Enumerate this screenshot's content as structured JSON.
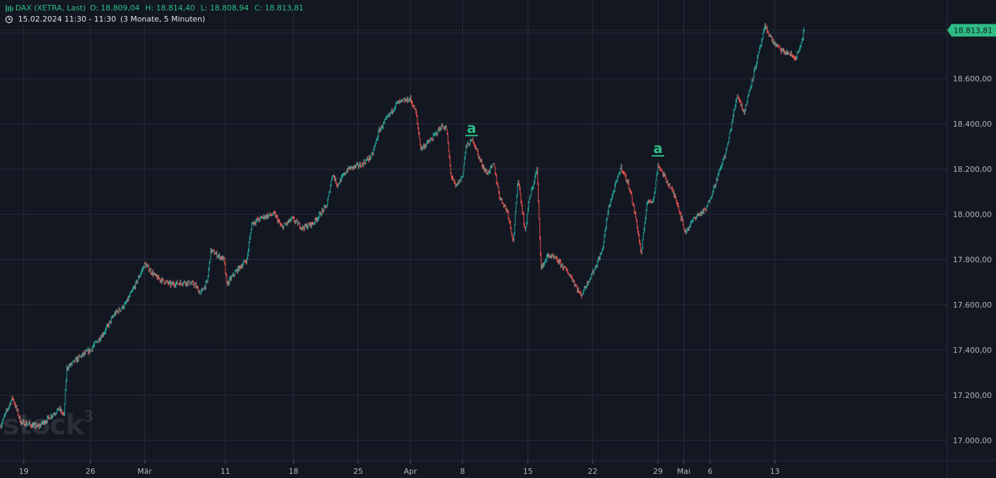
{
  "legend": {
    "symbol": "DAX (XETRA, Last)",
    "open": "O: 18.809,04",
    "high": "H: 18.814,40",
    "low": "L: 18.808,94",
    "close": "C: 18.813,81",
    "time": "15.02.2024 11:30 - 11:30",
    "period": "(3 Monate, 5 Minuten)"
  },
  "watermark": {
    "text": "stock",
    "sup": "3"
  },
  "colors": {
    "up": "#26a69a",
    "down": "#ef5350",
    "accent": "#2ebd85",
    "background": "#131722",
    "grid": "#2a2e39"
  },
  "chart_data": {
    "type": "line",
    "title": "",
    "ylim": [
      16920,
      18930
    ],
    "y_ticks": [
      17000,
      17200,
      17400,
      17600,
      17800,
      18000,
      18200,
      18400,
      18600
    ],
    "y_tick_labels": [
      "17.000,00",
      "17.200,00",
      "17.400,00",
      "17.600,00",
      "17.800,00",
      "18.000,00",
      "18.200,00",
      "18.400,00",
      "18.600,00"
    ],
    "x_tick_labels": [
      "19",
      "26",
      "Mär",
      "11",
      "18",
      "25",
      "Apr",
      "8",
      "15",
      "22",
      "29",
      "Mai",
      "6",
      "13"
    ],
    "x_tick_dates": [
      "2024-02-19",
      "2024-02-26",
      "2024-03-01",
      "2024-03-11",
      "2024-03-18",
      "2024-03-25",
      "2024-04-01",
      "2024-04-08",
      "2024-04-15",
      "2024-04-22",
      "2024-04-29",
      "2024-05-01",
      "2024-05-06",
      "2024-05-13"
    ],
    "last_price_label": "18.813,81",
    "last_price": 18813.81,
    "annotations": [
      {
        "label": "a",
        "date": "2024-04-09",
        "value": 18330
      },
      {
        "label": "a",
        "date": "2024-04-29",
        "value": 18240
      }
    ],
    "series": [
      {
        "x": [
          "2024-02-15",
          "2024-02-16",
          "2024-02-16",
          "2024-02-19",
          "2024-02-20",
          "2024-02-21",
          "2024-02-22",
          "2024-02-22",
          "2024-02-23",
          "2024-02-26",
          "2024-02-27",
          "2024-02-28",
          "2024-02-29",
          "2024-02-29",
          "2024-03-01",
          "2024-03-04",
          "2024-03-05",
          "2024-03-06",
          "2024-03-07",
          "2024-03-07",
          "2024-03-08",
          "2024-03-08",
          "2024-03-11",
          "2024-03-12",
          "2024-03-12",
          "2024-03-13",
          "2024-03-14",
          "2024-03-15",
          "2024-03-18",
          "2024-03-19",
          "2024-03-20",
          "2024-03-21",
          "2024-03-21",
          "2024-03-22",
          "2024-03-25",
          "2024-03-26",
          "2024-03-27",
          "2024-03-27",
          "2024-03-28",
          "2024-04-02",
          "2024-04-02",
          "2024-04-03",
          "2024-04-04",
          "2024-04-05",
          "2024-04-05",
          "2024-04-08",
          "2024-04-09",
          "2024-04-09",
          "2024-04-10",
          "2024-04-11",
          "2024-04-12",
          "2024-04-12",
          "2024-04-15",
          "2024-04-16",
          "2024-04-17",
          "2024-04-18",
          "2024-04-18",
          "2024-04-19",
          "2024-04-19",
          "2024-04-22",
          "2024-04-23",
          "2024-04-24",
          "2024-04-25",
          "2024-04-26",
          "2024-04-26",
          "2024-04-29",
          "2024-04-30",
          "2024-04-30",
          "2024-05-02",
          "2024-05-03",
          "2024-05-06",
          "2024-05-07",
          "2024-05-08",
          "2024-05-08",
          "2024-05-10",
          "2024-05-13",
          "2024-05-14",
          "2024-05-14",
          "2024-05-15"
        ],
        "y": [
          17060,
          17190,
          17080,
          17060,
          17100,
          17140,
          17110,
          17320,
          17370,
          17400,
          17480,
          17560,
          17600,
          17690,
          17780,
          17720,
          17690,
          17700,
          17690,
          17650,
          17700,
          17840,
          17700,
          17750,
          17800,
          17960,
          17990,
          18000,
          17980,
          17940,
          17980,
          18040,
          18180,
          18200,
          18220,
          18240,
          18370,
          18420,
          18490,
          18500,
          18290,
          18330,
          18390,
          18120,
          18170,
          18300,
          18330,
          18200,
          18150,
          18030,
          17960,
          18150,
          17760,
          17820,
          17800,
          17640,
          17700,
          17760,
          17840,
          18030,
          18210,
          18120,
          17940,
          18070,
          17820,
          18220,
          18090,
          18010,
          17920,
          17990,
          18030,
          18220,
          18340,
          18530,
          18650,
          18790,
          18750,
          18710,
          18813.81
        ]
      }
    ]
  }
}
